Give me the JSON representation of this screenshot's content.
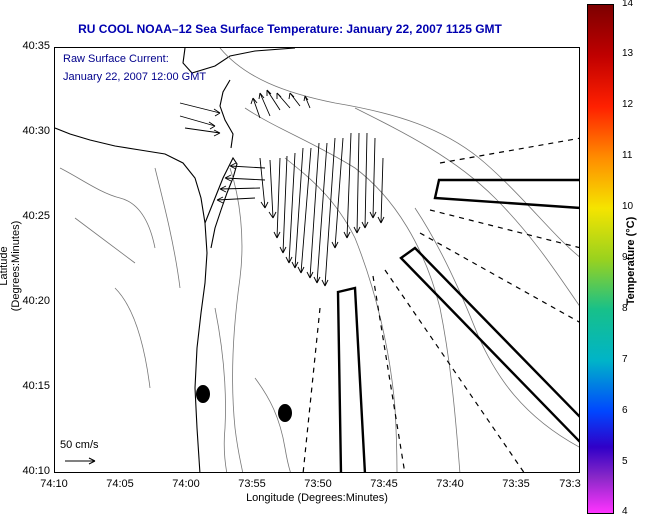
{
  "title": "RU COOL  NOAA–12  Sea Surface Temperature:  January 22, 2007 1125 GMT",
  "overlay": {
    "line1": "Raw Surface Current:",
    "line2": "January 22, 2007 12:00 GMT"
  },
  "axes": {
    "xlabel": "Longitude (Degrees:Minutes)",
    "ylabel": "Latitude (Degrees:Minutes)",
    "x_ticks": [
      "74:10",
      "74:05",
      "74:00",
      "73:55",
      "73:50",
      "73:45",
      "73:40",
      "73:35",
      "73:3"
    ],
    "y_ticks": [
      "40:35",
      "40:30",
      "40:25",
      "40:20",
      "40:15",
      "40:10"
    ]
  },
  "colorbar": {
    "label": "Temperature (°C)",
    "ticks": [
      "14",
      "13",
      "12",
      "11",
      "10",
      "9",
      "8",
      "7",
      "6",
      "5",
      "4"
    ],
    "range": [
      4,
      14
    ],
    "colors": [
      "#7d0000",
      "#ff2000",
      "#f5e400",
      "#17c08a",
      "#0046ff",
      "#ff33ff"
    ]
  },
  "scale": {
    "label": "50 cm/s"
  },
  "map_elements": {
    "current_field": "surface current vectors over Raritan Bay / Sandy Hook region",
    "markers": 2,
    "shipping_lanes": "outlined lanes and dashed lane boundaries"
  }
}
